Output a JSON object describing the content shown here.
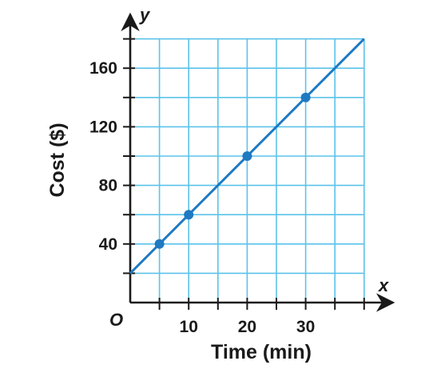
{
  "chart_data": {
    "type": "line",
    "title": "",
    "xlabel": "Time (min)",
    "ylabel": "Cost ($)",
    "x_axis_variable": "x",
    "y_axis_variable": "y",
    "origin_label": "O",
    "xlim": [
      0,
      40
    ],
    "ylim": [
      0,
      180
    ],
    "x_grid_step": 5,
    "y_grid_step": 20,
    "x_tick_labels": [
      10,
      20,
      30
    ],
    "y_tick_labels": [
      40,
      80,
      120,
      160
    ],
    "grid": true,
    "line": {
      "slope": 4,
      "intercept": 20,
      "x_range": [
        0,
        40
      ]
    },
    "series": [
      {
        "x": [
          5,
          10,
          20,
          30
        ],
        "y": [
          40,
          60,
          100,
          140
        ]
      }
    ],
    "colors": {
      "grid": "#5bc3ea",
      "line": "#1f7ac2",
      "axis": "#1a1a1a"
    }
  }
}
